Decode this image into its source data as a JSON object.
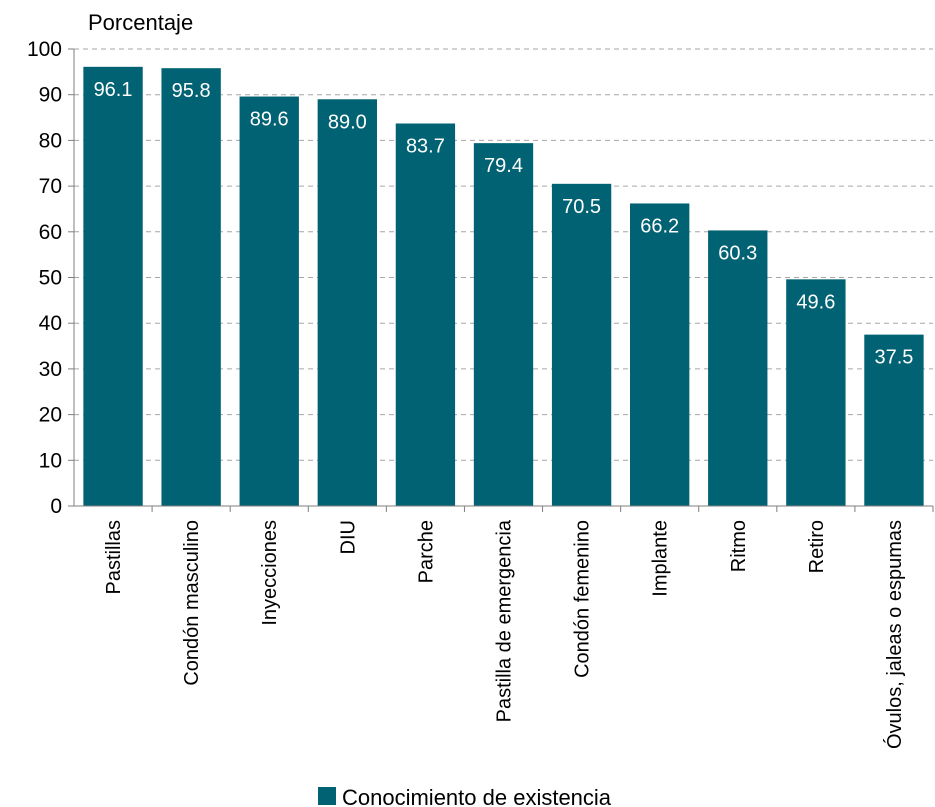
{
  "chart_data": {
    "type": "bar",
    "ylabel": "Porcentaje",
    "xlabel": "",
    "ylim": [
      0,
      100
    ],
    "yticks": [
      0,
      10,
      20,
      30,
      40,
      50,
      60,
      70,
      80,
      90,
      100
    ],
    "grid": true,
    "legend_position": "bottom",
    "categories": [
      "Pastillas",
      "Condón masculino",
      "Inyecciones",
      "DIU",
      "Parche",
      "Pastilla de emergencia",
      "Condón femenino",
      "Implante",
      "Ritmo",
      "Retiro",
      "Óvulos, jaleas o espumas"
    ],
    "series": [
      {
        "name": "Conocimiento de existencia",
        "color": "#006272",
        "values": [
          96.1,
          95.8,
          89.6,
          89.0,
          83.7,
          79.4,
          70.5,
          66.2,
          60.3,
          49.6,
          37.5
        ],
        "labels": [
          "96.1",
          "95.8",
          "89.6",
          "89.0",
          "83.7",
          "79.4",
          "70.5",
          "66.2",
          "60.3",
          "49.6",
          "37.5"
        ]
      }
    ]
  }
}
